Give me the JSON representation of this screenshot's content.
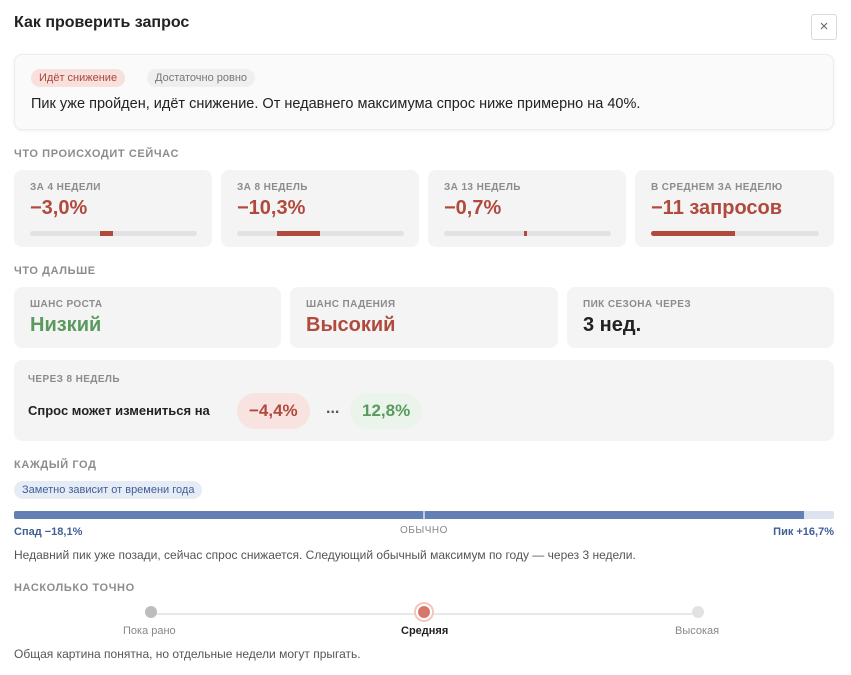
{
  "header": {
    "title": "Как проверить запрос",
    "close_label": "×"
  },
  "summary": {
    "badges": [
      "Идёт снижение",
      "Достаточно ровно"
    ],
    "text": "Пик уже пройден, идёт снижение. От недавнего максимума спрос ниже примерно на 40%."
  },
  "now": {
    "section": "ЧТО ПРОИСХОДИТ СЕЙЧАС",
    "cards": [
      {
        "label": "ЗА 4 НЕДЕЛИ",
        "value": "−3,0%"
      },
      {
        "label": "ЗА 8 НЕДЕЛЬ",
        "value": "−10,3%"
      },
      {
        "label": "ЗА 13 НЕДЕЛЬ",
        "value": "−0,7%"
      },
      {
        "label": "В СРЕДНЕМ ЗА НЕДЕЛЮ",
        "value": "−11 запросов"
      }
    ]
  },
  "next": {
    "section": "ЧТО ДАЛЬШЕ",
    "cards": [
      {
        "label": "ШАНС РОСТА",
        "value": "Низкий"
      },
      {
        "label": "ШАНС ПАДЕНИЯ",
        "value": "Высокий"
      },
      {
        "label": "ПИК СЕЗОНА ЧЕРЕЗ",
        "value": "3 нед."
      }
    ],
    "forecast": {
      "label": "ЧЕРЕЗ 8 НЕДЕЛЬ",
      "text": "Спрос может измениться на",
      "low": "−4,4%",
      "separator": "...",
      "high": "12,8%"
    }
  },
  "season": {
    "section": "КАЖДЫЙ ГОД",
    "badge": "Заметно зависит от времени года",
    "left": "Спад −18,1%",
    "center": "ОБЫЧНО",
    "right": "Пик +16,7%",
    "position": 0.963,
    "note": "Недавний пик уже позади, сейчас спрос снижается. Следующий обычный максимум по году — через 3 недели."
  },
  "accuracy": {
    "section": "НАСКОЛЬКО ТОЧНО",
    "levels": [
      "Пока рано",
      "Средняя",
      "Высокая"
    ],
    "selected": "Средняя",
    "note": "Общая картина понятна, но отдельные недели могут прыгать."
  },
  "colors": {
    "negative": "#b04a3c",
    "positive": "#5a9a5e",
    "seasonal": "#6380b5"
  }
}
